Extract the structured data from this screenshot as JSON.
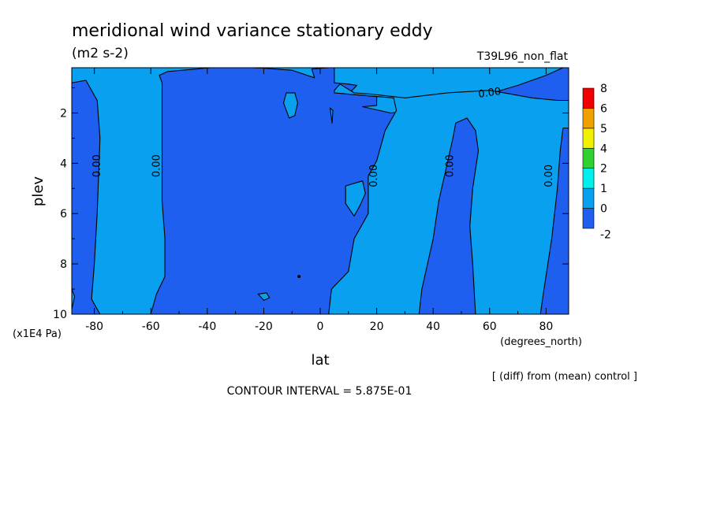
{
  "title": "meridional wind variance  stationary eddy",
  "units": "(m2 s-2)",
  "run_label": "T39L96_non_flat",
  "note": "[ (diff) from (mean) control ]",
  "contour_interval": "CONTOUR INTERVAL = 5.875E-01",
  "colors": {
    "dark_blue": "#1f5ff0",
    "light_blue": "#0aa0f0",
    "colorbar": [
      "#1f5ff0",
      "#0aa0f0",
      "#00f0f0",
      "#30d030",
      "#f0f000",
      "#f0a000",
      "#f00000"
    ]
  },
  "chart_data": {
    "type": "contour",
    "title": "meridional wind variance  stationary eddy",
    "units": "(m2 s-2)",
    "xlabel": "lat",
    "xunits": "(degrees_north)",
    "ylabel": "plev",
    "yunits": "(x1E4 Pa)",
    "xlim": [
      -88,
      88
    ],
    "ylim": [
      10,
      0.2
    ],
    "x_ticks": [
      -80,
      -60,
      -40,
      -20,
      0,
      20,
      40,
      60,
      80
    ],
    "x_tick_labels": [
      "-80",
      "-60",
      "-40",
      "-20",
      "0",
      "20",
      "40",
      "60",
      "80"
    ],
    "y_ticks": [
      2,
      4,
      6,
      8,
      10
    ],
    "y_tick_labels": [
      "2",
      "4",
      "6",
      "8",
      "10"
    ],
    "colorbar_levels": [
      "8",
      "6",
      "5",
      "4",
      "2",
      "1",
      "0",
      "-2"
    ],
    "contour_labels": [
      {
        "text": "0.00",
        "lat": -79,
        "plev": 4.1,
        "rotate": -90
      },
      {
        "text": "0.00",
        "lat": -58,
        "plev": 4.1,
        "rotate": -90
      },
      {
        "text": "0.00",
        "lat": 19,
        "plev": 4.5,
        "rotate": -90
      },
      {
        "text": "0.00",
        "lat": 46,
        "plev": 4.1,
        "rotate": -90
      },
      {
        "text": "0.00",
        "lat": 81,
        "plev": 4.5,
        "rotate": -90
      },
      {
        "text": "0.00",
        "lat": 60,
        "plev": 1.2,
        "rotate": -8
      }
    ],
    "regions": [
      {
        "level": "-2 to 0",
        "color": "dark_blue",
        "role": "background"
      },
      {
        "level": "0 to 1",
        "color": "light_blue",
        "name": "southern-high-latitude-band",
        "points": [
          [
            -88,
            0.2
          ],
          [
            -80,
            0.28
          ],
          [
            -50,
            0.28
          ],
          [
            -40,
            0.18
          ],
          [
            -60,
            0.4
          ],
          [
            -86,
            0.6
          ],
          [
            -88,
            0.6
          ]
        ]
      },
      {
        "level": "0 to 1",
        "color": "light_blue",
        "name": "southern-column",
        "points": [
          [
            -88,
            0.8
          ],
          [
            -83,
            0.7
          ],
          [
            -79,
            1.5
          ],
          [
            -78,
            3
          ],
          [
            -79,
            6
          ],
          [
            -80,
            8
          ],
          [
            -81,
            9.4
          ],
          [
            -78,
            10
          ],
          [
            -60,
            10
          ],
          [
            -58,
            9.2
          ],
          [
            -55,
            8.5
          ],
          [
            -55,
            7
          ],
          [
            -56,
            5.5
          ],
          [
            -56,
            3.5
          ],
          [
            -56,
            0.8
          ],
          [
            -57,
            0.5
          ],
          [
            -54,
            0.35
          ],
          [
            -34,
            0.15
          ],
          [
            -20,
            0.22
          ],
          [
            -10,
            0.3
          ],
          [
            -2,
            0.6
          ],
          [
            -3,
            0.25
          ],
          [
            5,
            0.18
          ],
          [
            5,
            0.2
          ],
          [
            5,
            0.8
          ],
          [
            10,
            0.85
          ],
          [
            13,
            0.9
          ],
          [
            10,
            1.25
          ],
          [
            20,
            1.35
          ],
          [
            20,
            1.7
          ],
          [
            15,
            1.75
          ],
          [
            25,
            2
          ],
          [
            40,
            1.8
          ],
          [
            55,
            1.4
          ],
          [
            70,
            0.9
          ],
          [
            80,
            0.5
          ],
          [
            88,
            0.1
          ],
          [
            88,
            -0.2
          ],
          [
            -88,
            -0.2
          ]
        ]
      },
      {
        "level": "0 to 1",
        "color": "light_blue",
        "name": "northern-tropical-column",
        "points": [
          [
            5,
            1.2
          ],
          [
            15,
            1.3
          ],
          [
            26,
            1.4
          ],
          [
            27,
            1.9
          ],
          [
            23,
            2.7
          ],
          [
            20,
            3.9
          ],
          [
            17,
            4.5
          ],
          [
            17,
            6
          ],
          [
            12,
            7
          ],
          [
            10,
            8.3
          ],
          [
            4,
            9
          ],
          [
            3,
            10
          ],
          [
            35,
            10
          ],
          [
            36,
            9
          ],
          [
            40,
            7
          ],
          [
            42,
            5.5
          ],
          [
            45,
            4
          ],
          [
            47,
            3
          ],
          [
            48,
            2.4
          ],
          [
            52,
            2.2
          ],
          [
            55,
            2.7
          ],
          [
            56,
            3.5
          ],
          [
            54,
            5
          ],
          [
            53,
            6.5
          ],
          [
            54,
            8
          ],
          [
            55,
            10
          ],
          [
            78,
            10
          ],
          [
            79,
            9.2
          ],
          [
            82,
            7
          ],
          [
            84,
            5
          ],
          [
            85,
            3.5
          ],
          [
            86,
            2.6
          ],
          [
            88,
            2.6
          ],
          [
            88,
            1.5
          ],
          [
            84,
            1.5
          ],
          [
            75,
            1.4
          ],
          [
            60,
            1.1
          ],
          [
            45,
            1.2
          ],
          [
            30,
            1.4
          ],
          [
            18,
            1.25
          ],
          [
            12,
            1.2
          ],
          [
            7,
            0.85
          ],
          [
            5,
            1.1
          ]
        ]
      },
      {
        "level": "0 to 1",
        "color": "light_blue",
        "name": "southern-patch",
        "points": [
          [
            -12,
            1.2
          ],
          [
            -9,
            1.2
          ],
          [
            -8,
            1.6
          ],
          [
            -9,
            2.1
          ],
          [
            -11,
            2.2
          ],
          [
            -13,
            1.6
          ]
        ]
      },
      {
        "level": "0 to 1",
        "color": "light_blue",
        "name": "equatorial-patch",
        "points": [
          [
            9,
            4.9
          ],
          [
            15,
            4.7
          ],
          [
            16,
            5.2
          ],
          [
            14,
            5.7
          ],
          [
            12,
            6.1
          ],
          [
            9,
            5.6
          ]
        ]
      },
      {
        "level": "0 to 1",
        "color": "light_blue",
        "name": "edge-patch",
        "points": [
          [
            -88,
            9.0
          ],
          [
            -87,
            9.3
          ],
          [
            -88,
            9.8
          ]
        ]
      },
      {
        "level": "0 to 1",
        "color": "light_blue",
        "name": "small-patch",
        "points": [
          [
            -22,
            9.2
          ],
          [
            -19,
            9.15
          ],
          [
            -18,
            9.35
          ],
          [
            -20,
            9.45
          ]
        ]
      },
      {
        "level": "0 to 1",
        "color": "light_blue",
        "name": "northern-tiny-patch",
        "points": [
          [
            3.5,
            1.8
          ],
          [
            4.5,
            1.9
          ],
          [
            4.2,
            2.4
          ]
        ]
      }
    ]
  }
}
